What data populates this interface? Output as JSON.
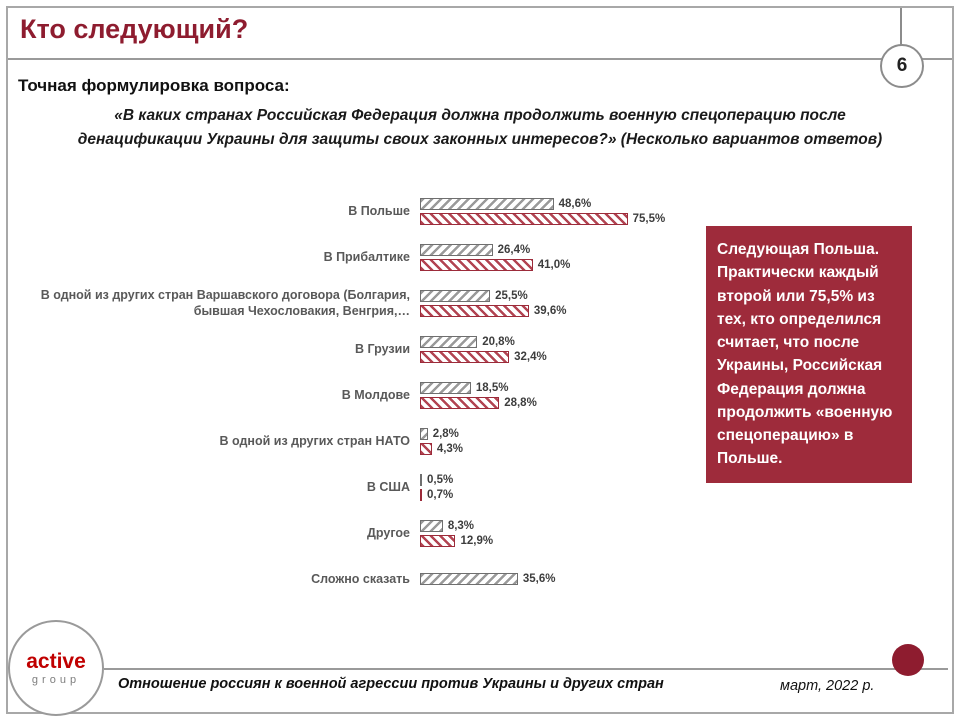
{
  "page": {
    "title": "Кто следующий?",
    "number": "6"
  },
  "question": {
    "label": "Точная формулировка вопроса:",
    "text": "«В каких странах Российская Федерация должна продолжить военную спецоперацию после денацификации Украины для защиты своих законных интересов?» (Несколько вариантов ответов)"
  },
  "chart_data": {
    "type": "bar",
    "orientation": "horizontal",
    "categories": [
      "В Польше",
      "В Прибалтике",
      "В одной из других стран Варшавского договора (Болгария, бывшая Чехословакия, Венгрия,…",
      "В Грузии",
      "В Молдове",
      "В одной из других стран НАТО",
      "В США",
      "Другое",
      "Сложно сказать"
    ],
    "series": [
      {
        "name": "gray-hatched",
        "color": "#6f6f6f",
        "stripe_color": "#9a9a9a",
        "values": [
          48.6,
          26.4,
          25.5,
          20.8,
          18.5,
          2.8,
          0.5,
          8.3,
          35.6
        ],
        "labels": [
          "48,6%",
          "26,4%",
          "25,5%",
          "20,8%",
          "18,5%",
          "2,8%",
          "0,5%",
          "8,3%",
          "35,6%"
        ]
      },
      {
        "name": "red-hatched",
        "color": "#9c2b3a",
        "stripe_color": "#b24452",
        "values": [
          75.5,
          41.0,
          39.6,
          32.4,
          28.8,
          4.3,
          0.7,
          12.9,
          null
        ],
        "labels": [
          "75,5%",
          "41,0%",
          "39,6%",
          "32,4%",
          "28,8%",
          "4,3%",
          "0,7%",
          "12,9%",
          ""
        ]
      }
    ],
    "xlim": [
      0,
      100
    ],
    "legend": "none",
    "grid": false
  },
  "callout": {
    "text": "Следующая Польша. Практически каждый второй или 75,5% из тех, кто определился считает, что после Украины, Российская Федерация должна продолжить «военную спецоперацию» в Польше.",
    "bg_color": "#9e2b3b",
    "text_color": "#ffffff"
  },
  "footer": {
    "logo_line1": "active",
    "logo_line2": "group",
    "source": "Отношение россиян к военной агрессии против Украины и других стран",
    "date": "март, 2022 р."
  },
  "colors": {
    "accent_maroon": "#8e1c2f",
    "rule_gray": "#9a9a9a"
  }
}
